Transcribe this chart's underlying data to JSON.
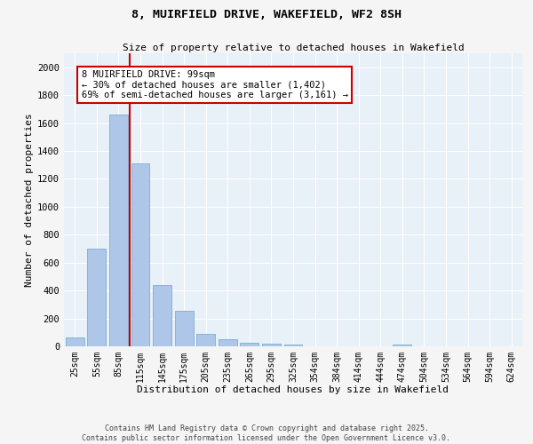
{
  "title_line1": "8, MUIRFIELD DRIVE, WAKEFIELD, WF2 8SH",
  "title_line2": "Size of property relative to detached houses in Wakefield",
  "xlabel": "Distribution of detached houses by size in Wakefield",
  "ylabel": "Number of detached properties",
  "categories": [
    "25sqm",
    "55sqm",
    "85sqm",
    "115sqm",
    "145sqm",
    "175sqm",
    "205sqm",
    "235sqm",
    "265sqm",
    "295sqm",
    "325sqm",
    "354sqm",
    "384sqm",
    "414sqm",
    "444sqm",
    "474sqm",
    "504sqm",
    "534sqm",
    "564sqm",
    "594sqm",
    "624sqm"
  ],
  "values": [
    65,
    700,
    1660,
    1310,
    440,
    255,
    90,
    50,
    25,
    20,
    15,
    0,
    0,
    0,
    0,
    15,
    0,
    0,
    0,
    0,
    0
  ],
  "bar_color": "#aec6e8",
  "bar_edge_color": "#7aafd4",
  "vline_color": "#cc0000",
  "annotation_text": "8 MUIRFIELD DRIVE: 99sqm\n← 30% of detached houses are smaller (1,402)\n69% of semi-detached houses are larger (3,161) →",
  "annotation_box_color": "#cc0000",
  "ylim": [
    0,
    2100
  ],
  "yticks": [
    0,
    200,
    400,
    600,
    800,
    1000,
    1200,
    1400,
    1600,
    1800,
    2000
  ],
  "bg_color": "#e8f0f8",
  "grid_color": "#ffffff",
  "footer_line1": "Contains HM Land Registry data © Crown copyright and database right 2025.",
  "footer_line2": "Contains public sector information licensed under the Open Government Licence v3.0."
}
